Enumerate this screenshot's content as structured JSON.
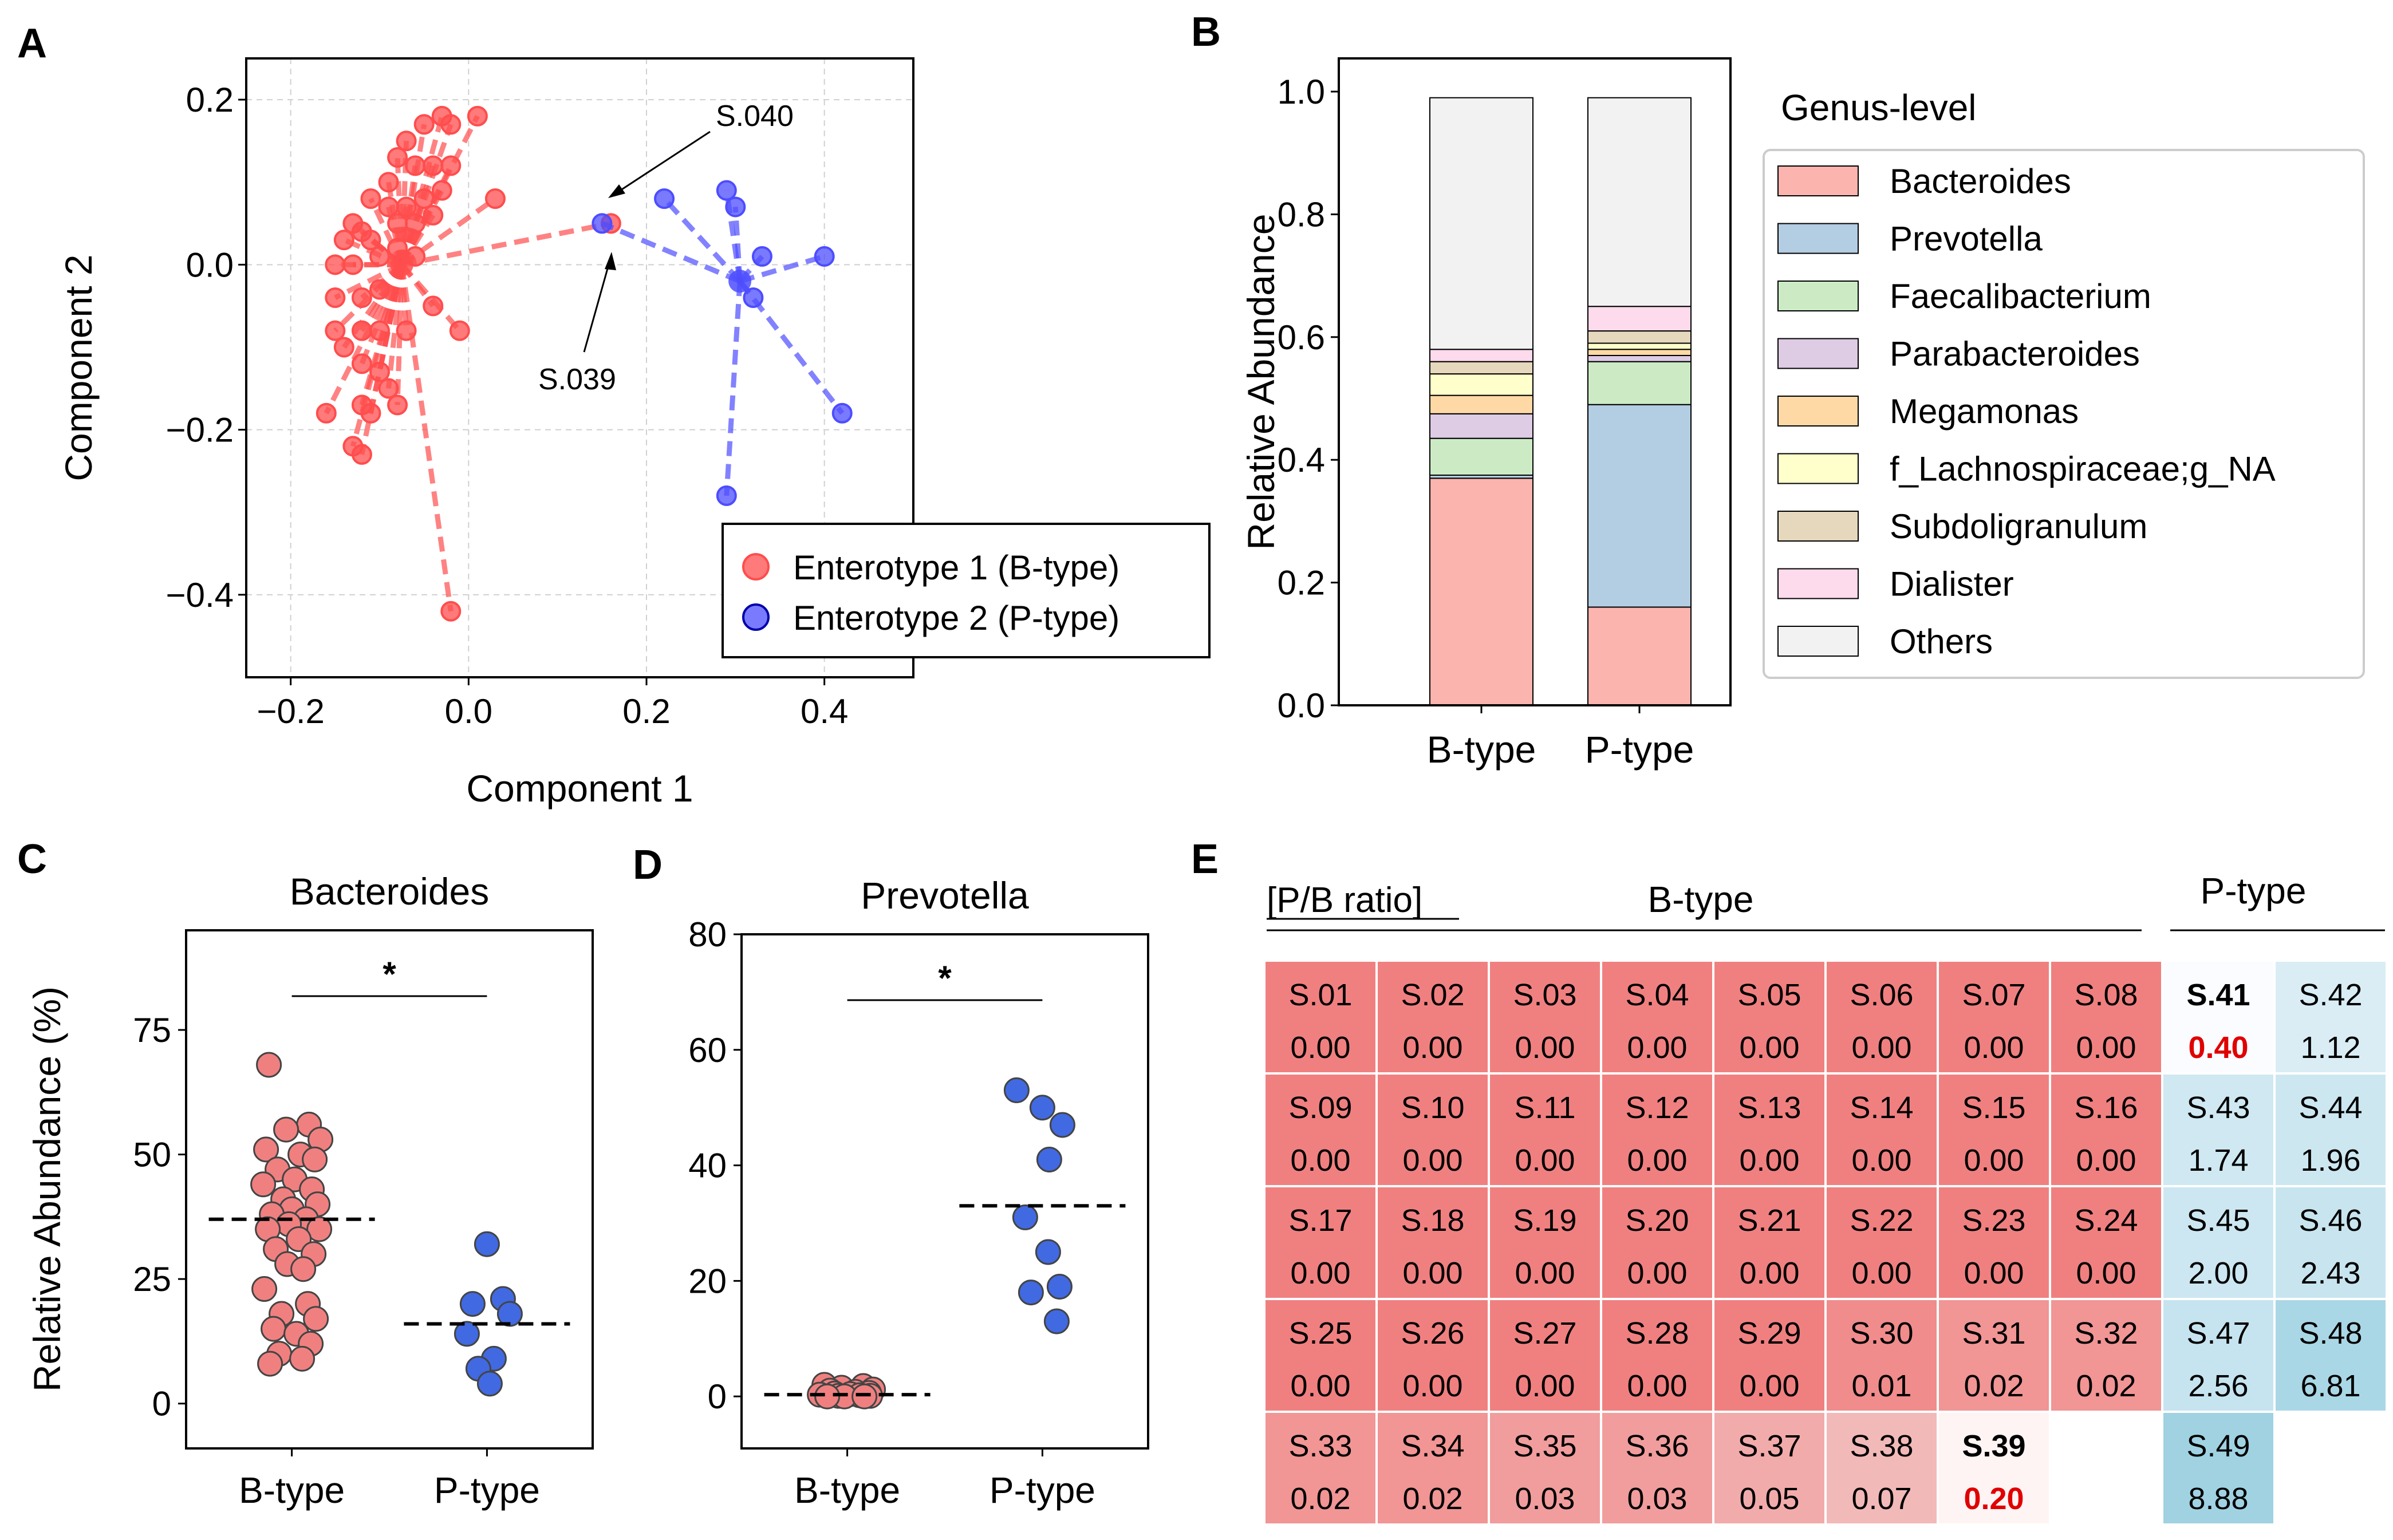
{
  "panels": {
    "A": "A",
    "B": "B",
    "C": "C",
    "D": "D",
    "E": "E"
  },
  "colors": {
    "btype": "#ff4d4d",
    "ptype": "#4d4dff",
    "grid": "#d0d0d0",
    "stars": "#e00000"
  },
  "chart_data": [
    {
      "id": "A",
      "type": "scatter",
      "title": "",
      "xlabel": "Component 1",
      "ylabel": "Component 2",
      "xlim": [
        -0.25,
        0.5
      ],
      "ylim": [
        -0.5,
        0.25
      ],
      "xticks": [
        -0.2,
        0.0,
        0.2,
        0.4
      ],
      "xtick_labels": [
        "−0.2",
        "0.0",
        "0.2",
        "0.4"
      ],
      "yticks": [
        -0.4,
        -0.2,
        0.0,
        0.2
      ],
      "ytick_labels": [
        "−0.4",
        "−0.2",
        "0.0",
        "0.2"
      ],
      "grid": true,
      "legend": [
        "Enterotype 1 (B-type)",
        "Enterotype 2 (P-type)"
      ],
      "legend_position": "lower-right",
      "annotations": [
        {
          "text": "S.040",
          "point": [
            0.16,
            0.05
          ]
        },
        {
          "text": "S.039",
          "point": [
            0.16,
            0.04
          ]
        }
      ],
      "series": [
        {
          "name": "Enterotype 1 (B-type)",
          "centroid": [
            -0.075,
            0.0
          ],
          "points": [
            [
              -0.03,
              0.18
            ],
            [
              -0.02,
              0.17
            ],
            [
              0.01,
              0.18
            ],
            [
              -0.05,
              0.17
            ],
            [
              -0.07,
              0.15
            ],
            [
              -0.06,
              0.12
            ],
            [
              -0.08,
              0.13
            ],
            [
              -0.04,
              0.12
            ],
            [
              -0.02,
              0.12
            ],
            [
              -0.09,
              0.1
            ],
            [
              -0.03,
              0.09
            ],
            [
              0.03,
              0.08
            ],
            [
              -0.11,
              0.08
            ],
            [
              -0.09,
              0.07
            ],
            [
              -0.07,
              0.07
            ],
            [
              -0.05,
              0.08
            ],
            [
              -0.06,
              0.05
            ],
            [
              -0.08,
              0.05
            ],
            [
              -0.04,
              0.06
            ],
            [
              -0.12,
              0.04
            ],
            [
              -0.14,
              0.03
            ],
            [
              -0.13,
              0.05
            ],
            [
              -0.11,
              0.03
            ],
            [
              -0.15,
              0.0
            ],
            [
              -0.13,
              0.0
            ],
            [
              -0.1,
              0.01
            ],
            [
              -0.08,
              0.02
            ],
            [
              -0.06,
              0.01
            ],
            [
              -0.15,
              -0.04
            ],
            [
              -0.12,
              -0.04
            ],
            [
              -0.1,
              -0.03
            ],
            [
              -0.15,
              -0.08
            ],
            [
              -0.12,
              -0.08
            ],
            [
              -0.1,
              -0.08
            ],
            [
              -0.07,
              -0.08
            ],
            [
              -0.04,
              -0.05
            ],
            [
              -0.01,
              -0.08
            ],
            [
              -0.14,
              -0.1
            ],
            [
              -0.12,
              -0.12
            ],
            [
              -0.1,
              -0.13
            ],
            [
              -0.09,
              -0.15
            ],
            [
              -0.12,
              -0.17
            ],
            [
              -0.11,
              -0.18
            ],
            [
              -0.08,
              -0.17
            ],
            [
              -0.13,
              -0.22
            ],
            [
              -0.12,
              -0.23
            ],
            [
              -0.16,
              -0.18
            ],
            [
              -0.02,
              -0.42
            ],
            [
              0.16,
              0.05
            ]
          ]
        },
        {
          "name": "Enterotype 2 (P-type)",
          "centroid": [
            0.305,
            -0.02
          ],
          "points": [
            [
              0.22,
              0.08
            ],
            [
              0.29,
              0.09
            ],
            [
              0.3,
              0.07
            ],
            [
              0.33,
              0.01
            ],
            [
              0.4,
              0.01
            ],
            [
              0.32,
              -0.04
            ],
            [
              0.42,
              -0.18
            ],
            [
              0.29,
              -0.28
            ],
            [
              0.15,
              0.05
            ]
          ]
        }
      ]
    },
    {
      "id": "B",
      "type": "bar",
      "stacked": true,
      "title": "",
      "xlabel": "",
      "ylabel": "Relative Abundance",
      "ylim": [
        0,
        1.0
      ],
      "yticks": [
        0.0,
        0.2,
        0.4,
        0.6,
        0.8,
        1.0
      ],
      "ytick_labels": [
        "0.0",
        "0.2",
        "0.4",
        "0.6",
        "0.8",
        "1.0"
      ],
      "categories": [
        "B-type",
        "P-type"
      ],
      "legend_title": "Genus-level",
      "legend_position": "right",
      "series": [
        {
          "name": "Bacteroides",
          "color": "#fbb4ae",
          "values": [
            0.37,
            0.16
          ]
        },
        {
          "name": "Prevotella",
          "color": "#b3cde3",
          "values": [
            0.005,
            0.33
          ]
        },
        {
          "name": "Faecalibacterium",
          "color": "#ccebc5",
          "values": [
            0.06,
            0.07
          ]
        },
        {
          "name": "Parabacteroides",
          "color": "#decbe4",
          "values": [
            0.04,
            0.01
          ]
        },
        {
          "name": "Megamonas",
          "color": "#fed9a6",
          "values": [
            0.03,
            0.01
          ]
        },
        {
          "name": "f_Lachnospiraceae;g_NA",
          "color": "#ffffcc",
          "values": [
            0.035,
            0.01
          ]
        },
        {
          "name": "Subdoligranulum",
          "color": "#e5d8bd",
          "values": [
            0.02,
            0.02
          ]
        },
        {
          "name": "Dialister",
          "color": "#fddaec",
          "values": [
            0.02,
            0.04
          ]
        },
        {
          "name": "Others",
          "color": "#f2f2f2",
          "values": [
            0.41,
            0.34
          ]
        }
      ]
    },
    {
      "id": "C",
      "type": "scatter",
      "title": "Bacteroides",
      "xlabel": "",
      "ylabel": "Relative Abundance (%)",
      "ylim": [
        -9,
        95
      ],
      "yticks": [
        0,
        25,
        50,
        75
      ],
      "ytick_labels": [
        "0",
        "25",
        "50",
        "75"
      ],
      "categories": [
        "B-type",
        "P-type"
      ],
      "significance": "*",
      "medians": [
        37,
        16
      ],
      "series": [
        {
          "name": "B-type",
          "color": "#f08080",
          "values": [
            68,
            56,
            55,
            53,
            51,
            50,
            49,
            47,
            45,
            44,
            43,
            41,
            40,
            39,
            38,
            37,
            36,
            35,
            35,
            33,
            31,
            30,
            28,
            27,
            23,
            20,
            18,
            17,
            15,
            14,
            12,
            10,
            9,
            8
          ]
        },
        {
          "name": "P-type",
          "color": "#4169e1",
          "values": [
            32,
            21,
            20,
            18,
            14,
            9,
            7,
            4
          ]
        }
      ]
    },
    {
      "id": "D",
      "type": "scatter",
      "title": "Prevotella",
      "xlabel": "",
      "ylabel": "",
      "ylim": [
        -9,
        80
      ],
      "yticks": [
        0,
        20,
        40,
        60,
        80
      ],
      "ytick_labels": [
        "0",
        "20",
        "40",
        "60",
        "80"
      ],
      "categories": [
        "B-type",
        "P-type"
      ],
      "significance": "*",
      "medians": [
        0.3,
        33
      ],
      "series": [
        {
          "name": "B-type",
          "color": "#f08080",
          "values": [
            2.0,
            1.8,
            1.5,
            1.2,
            1.0,
            0.8,
            0.6,
            0.5,
            0.4,
            0.3,
            0.2,
            0.1,
            0.1,
            0.0,
            0.0,
            0.0
          ]
        },
        {
          "name": "P-type",
          "color": "#4169e1",
          "values": [
            53,
            50,
            47,
            41,
            31,
            25,
            19,
            18,
            13
          ]
        }
      ]
    },
    {
      "id": "E",
      "type": "heatmap",
      "title": "",
      "ratio_label": "[P/B ratio]",
      "group_labels": [
        "B-type",
        "P-type"
      ],
      "bold_samples": [
        "S.39",
        "S.41"
      ],
      "highlight_values": [
        "0.20",
        "0.40"
      ],
      "rows": [
        [
          [
            "S.01",
            "0.00"
          ],
          [
            "S.02",
            "0.00"
          ],
          [
            "S.03",
            "0.00"
          ],
          [
            "S.04",
            "0.00"
          ],
          [
            "S.05",
            "0.00"
          ],
          [
            "S.06",
            "0.00"
          ],
          [
            "S.07",
            "0.00"
          ],
          [
            "S.08",
            "0.00"
          ],
          [
            "S.41",
            "0.40"
          ],
          [
            "S.42",
            "1.12"
          ]
        ],
        [
          [
            "S.09",
            "0.00"
          ],
          [
            "S.10",
            "0.00"
          ],
          [
            "S.11",
            "0.00"
          ],
          [
            "S.12",
            "0.00"
          ],
          [
            "S.13",
            "0.00"
          ],
          [
            "S.14",
            "0.00"
          ],
          [
            "S.15",
            "0.00"
          ],
          [
            "S.16",
            "0.00"
          ],
          [
            "S.43",
            "1.74"
          ],
          [
            "S.44",
            "1.96"
          ]
        ],
        [
          [
            "S.17",
            "0.00"
          ],
          [
            "S.18",
            "0.00"
          ],
          [
            "S.19",
            "0.00"
          ],
          [
            "S.20",
            "0.00"
          ],
          [
            "S.21",
            "0.00"
          ],
          [
            "S.22",
            "0.00"
          ],
          [
            "S.23",
            "0.00"
          ],
          [
            "S.24",
            "0.00"
          ],
          [
            "S.45",
            "2.00"
          ],
          [
            "S.46",
            "2.43"
          ]
        ],
        [
          [
            "S.25",
            "0.00"
          ],
          [
            "S.26",
            "0.00"
          ],
          [
            "S.27",
            "0.00"
          ],
          [
            "S.28",
            "0.00"
          ],
          [
            "S.29",
            "0.00"
          ],
          [
            "S.30",
            "0.01"
          ],
          [
            "S.31",
            "0.02"
          ],
          [
            "S.32",
            "0.02"
          ],
          [
            "S.47",
            "2.56"
          ],
          [
            "S.48",
            "6.81"
          ]
        ],
        [
          [
            "S.33",
            "0.02"
          ],
          [
            "S.34",
            "0.02"
          ],
          [
            "S.35",
            "0.03"
          ],
          [
            "S.36",
            "0.03"
          ],
          [
            "S.37",
            "0.05"
          ],
          [
            "S.38",
            "0.07"
          ],
          [
            "S.39",
            "0.20"
          ],
          null,
          [
            "S.49",
            "8.88"
          ],
          null
        ]
      ]
    }
  ]
}
